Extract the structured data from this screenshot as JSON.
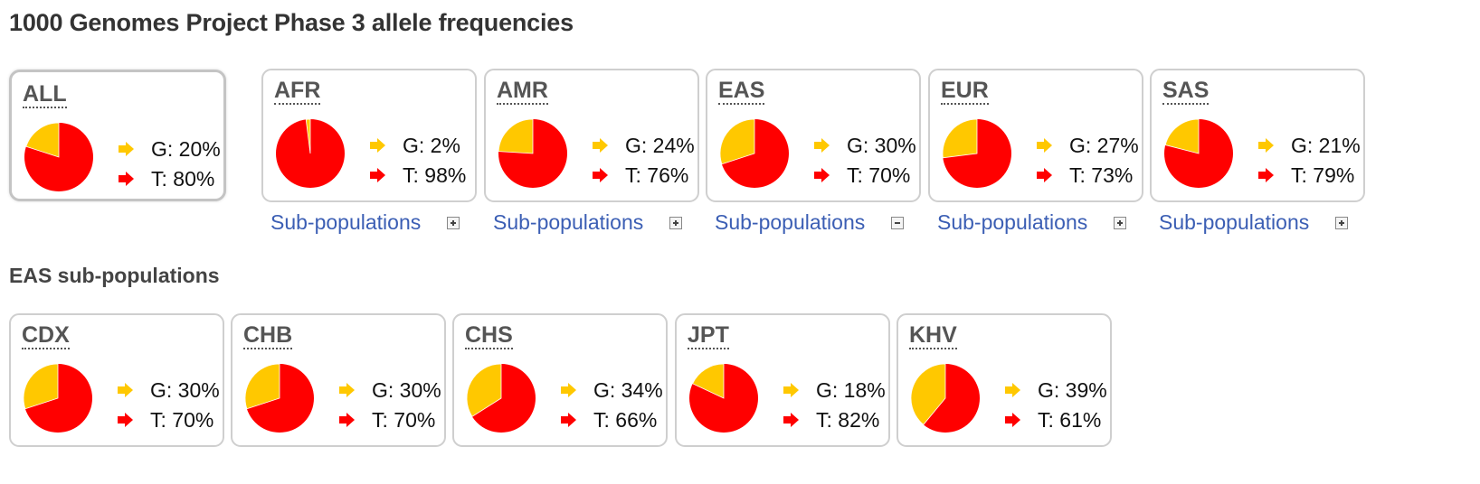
{
  "page_title": "1000 Genomes Project Phase 3 allele frequencies",
  "subpop_section_title": "EAS sub-populations",
  "colors": {
    "allele_g": "#ffc800",
    "allele_t": "#ff0000",
    "link": "#3b5eb4"
  },
  "subpop_link_label": "Sub-populations",
  "populations": [
    {
      "name": "ALL",
      "selected": true,
      "g_fraction": 0.2,
      "g_label": "G: 20%",
      "t_label": "T: 80%"
    },
    {
      "name": "AFR",
      "selected": false,
      "g_fraction": 0.02,
      "g_label": "G: 2%",
      "t_label": "T: 98%",
      "toggle": "expand"
    },
    {
      "name": "AMR",
      "selected": false,
      "g_fraction": 0.24,
      "g_label": "G: 24%",
      "t_label": "T: 76%",
      "toggle": "expand"
    },
    {
      "name": "EAS",
      "selected": false,
      "g_fraction": 0.3,
      "g_label": "G: 30%",
      "t_label": "T: 70%",
      "toggle": "collapse"
    },
    {
      "name": "EUR",
      "selected": false,
      "g_fraction": 0.27,
      "g_label": "G: 27%",
      "t_label": "T: 73%",
      "toggle": "expand"
    },
    {
      "name": "SAS",
      "selected": false,
      "g_fraction": 0.21,
      "g_label": "G: 21%",
      "t_label": "T: 79%",
      "toggle": "expand"
    }
  ],
  "sub_populations": [
    {
      "name": "CDX",
      "g_fraction": 0.3,
      "g_label": "G: 30%",
      "t_label": "T: 70%"
    },
    {
      "name": "CHB",
      "g_fraction": 0.3,
      "g_label": "G: 30%",
      "t_label": "T: 70%"
    },
    {
      "name": "CHS",
      "g_fraction": 0.34,
      "g_label": "G: 34%",
      "t_label": "T: 66%"
    },
    {
      "name": "JPT",
      "g_fraction": 0.18,
      "g_label": "G: 18%",
      "t_label": "T: 82%"
    },
    {
      "name": "KHV",
      "g_fraction": 0.39,
      "g_label": "G: 39%",
      "t_label": "T: 61%"
    }
  ]
}
